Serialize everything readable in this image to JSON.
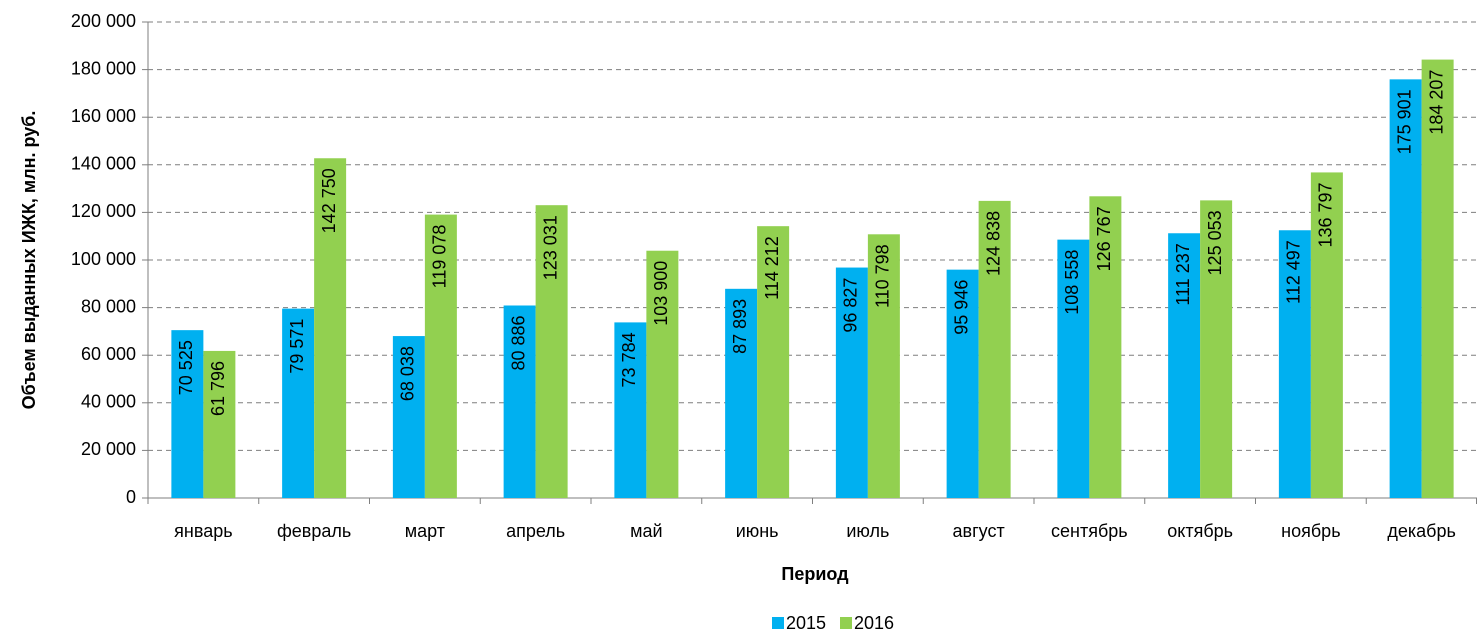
{
  "chart_data": {
    "type": "bar",
    "y_label": "Объем выданных ИЖК, млн. руб.",
    "x_label": "Период",
    "categories": [
      "январь",
      "февраль",
      "март",
      "апрель",
      "май",
      "июнь",
      "июль",
      "август",
      "сентябрь",
      "октябрь",
      "ноябрь",
      "декабрь"
    ],
    "series": [
      {
        "name": "2015",
        "color": "#00b0f0",
        "values": [
          70525,
          79571,
          68038,
          80886,
          73784,
          87893,
          96827,
          95946,
          108558,
          111237,
          112497,
          175901
        ],
        "value_labels": [
          "70 525",
          "79 571",
          "68 038",
          "80 886",
          "73 784",
          "87 893",
          "96 827",
          "95 946",
          "108 558",
          "111 237",
          "112 497",
          "175 901"
        ]
      },
      {
        "name": "2016",
        "color": "#92d050",
        "values": [
          61796,
          142750,
          119078,
          123031,
          103900,
          114212,
          110798,
          124838,
          126767,
          125053,
          136797,
          184207
        ],
        "value_labels": [
          "61 796",
          "142 750",
          "119 078",
          "123 031",
          "103 900",
          "114 212",
          "110 798",
          "124 838",
          "126 767",
          "125 053",
          "136 797",
          "184 207"
        ]
      }
    ],
    "ylim": [
      0,
      200000
    ],
    "yticks": [
      0,
      {
        "value": 20000,
        "label": "20 000"
      },
      {
        "value": 40000,
        "label": "40 000"
      },
      {
        "value": 60000,
        "label": "60 000"
      },
      {
        "value": 80000,
        "label": "80 000"
      },
      {
        "value": 100000,
        "label": "100 000"
      },
      {
        "value": 120000,
        "label": "120 000"
      },
      {
        "value": 140000,
        "label": "140 000"
      },
      {
        "value": 160000,
        "label": "160 000"
      },
      {
        "value": 180000,
        "label": "180 000"
      },
      {
        "value": 200000,
        "label": "200 000"
      }
    ],
    "grid": true,
    "legend": "bottom"
  }
}
